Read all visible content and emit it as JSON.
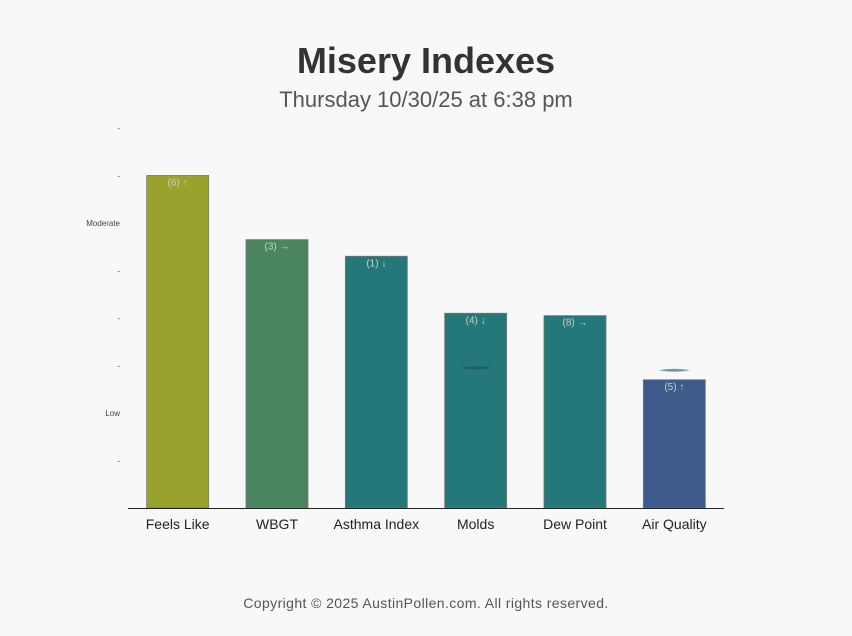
{
  "header": {
    "title": "Misery Indexes",
    "subtitle": "Thursday 10/30/25 at 6:38 pm"
  },
  "footer": {
    "copyright": "Copyright © 2025 AustinPollen.com.  All rights reserved."
  },
  "chart_data": {
    "type": "bar",
    "categories": [
      "Feels Like",
      "WBGT",
      "Asthma Index",
      "Molds",
      "Dew Point",
      "Air Quality"
    ],
    "values": [
      7.0,
      5.65,
      5.3,
      4.1,
      4.05,
      2.7
    ],
    "bar_labels": [
      "(6) ↑",
      "(3) →",
      "(1) ↓",
      "(4) ↓",
      "(8) →",
      "(5) ↑"
    ],
    "colors": [
      "#9aa22e",
      "#4b8660",
      "#25787a",
      "#25787a",
      "#25787a",
      "#3d5b8a"
    ],
    "markers": [
      null,
      null,
      null,
      2.95,
      null,
      2.9
    ],
    "ylim": [
      0,
      8
    ],
    "y_ticks": [
      {
        "value": 8,
        "label": "-"
      },
      {
        "value": 7,
        "label": "-"
      },
      {
        "value": 6,
        "label": "Moderate"
      },
      {
        "value": 5,
        "label": "-"
      },
      {
        "value": 4,
        "label": "-"
      },
      {
        "value": 3,
        "label": "-"
      },
      {
        "value": 2,
        "label": "Low"
      },
      {
        "value": 1,
        "label": "-"
      }
    ],
    "grid": false,
    "legend": "none"
  }
}
